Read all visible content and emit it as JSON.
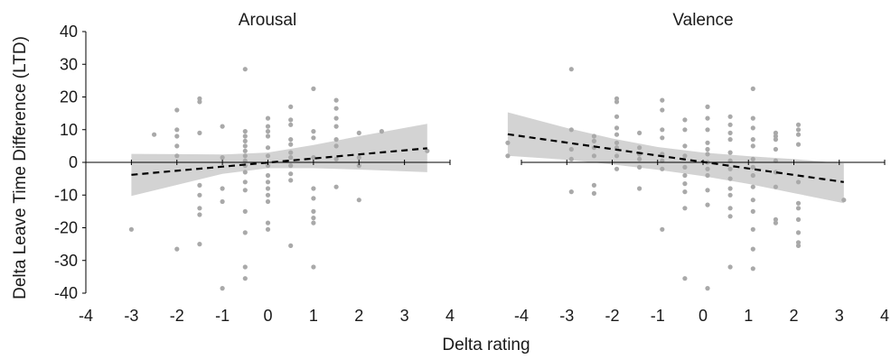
{
  "figure": {
    "ylabel": "Delta Leave Time Difference (LTD)",
    "xlabel": "Delta rating"
  },
  "chart_data": [
    {
      "type": "scatter",
      "title": "Arousal",
      "xlabel": "Delta rating",
      "ylabel": "Delta Leave Time Difference (LTD)",
      "xlim": [
        -4,
        4
      ],
      "ylim": [
        -40,
        40
      ],
      "x_ticks": [
        -4,
        -3,
        -2,
        -1,
        0,
        1,
        2,
        3,
        4
      ],
      "y_ticks": [
        -40,
        -30,
        -20,
        -10,
        0,
        10,
        20,
        30,
        40
      ],
      "grid": false,
      "colors": {
        "points": "#a9a9a9",
        "band": "#d3d3d3",
        "line": "#000000",
        "axis": "#000000"
      },
      "fit_line": {
        "x": [
          -3,
          3.5
        ],
        "y": [
          -3.8,
          4.3
        ]
      },
      "confidence_band": [
        {
          "x": -3.0,
          "lower": -10.3,
          "upper": 2.6
        },
        {
          "x": -2.0,
          "lower": -6.9,
          "upper": 2.5
        },
        {
          "x": -1.0,
          "lower": -3.5,
          "upper": 2.4
        },
        {
          "x": 0.0,
          "lower": -1.8,
          "upper": 3.0
        },
        {
          "x": 1.0,
          "lower": -1.8,
          "upper": 5.3
        },
        {
          "x": 2.0,
          "lower": -2.2,
          "upper": 8.0
        },
        {
          "x": 3.5,
          "lower": -3.0,
          "upper": 11.8
        }
      ],
      "points": [
        {
          "x": -3,
          "y": -20.5
        },
        {
          "x": -2.5,
          "y": 8.5
        },
        {
          "x": -2,
          "y": 16
        },
        {
          "x": -2,
          "y": 10
        },
        {
          "x": -2,
          "y": 8
        },
        {
          "x": -2,
          "y": 5
        },
        {
          "x": -2,
          "y": 2
        },
        {
          "x": -2,
          "y": -26.5
        },
        {
          "x": -1.5,
          "y": 19.5
        },
        {
          "x": -1.5,
          "y": 18.5
        },
        {
          "x": -1.5,
          "y": 9
        },
        {
          "x": -1.5,
          "y": -7
        },
        {
          "x": -1.5,
          "y": -10
        },
        {
          "x": -1.5,
          "y": -14
        },
        {
          "x": -1.5,
          "y": -16
        },
        {
          "x": -1.5,
          "y": -25
        },
        {
          "x": -1,
          "y": 11
        },
        {
          "x": -1,
          "y": 1.5
        },
        {
          "x": -1,
          "y": -8
        },
        {
          "x": -1,
          "y": -12
        },
        {
          "x": -1,
          "y": -38.5
        },
        {
          "x": -0.5,
          "y": 28.5
        },
        {
          "x": -0.5,
          "y": 9.5
        },
        {
          "x": -0.5,
          "y": 8
        },
        {
          "x": -0.5,
          "y": 6.5
        },
        {
          "x": -0.5,
          "y": 5
        },
        {
          "x": -0.5,
          "y": 3.5
        },
        {
          "x": -0.5,
          "y": 2
        },
        {
          "x": -0.5,
          "y": 0.5
        },
        {
          "x": -0.5,
          "y": -1
        },
        {
          "x": -0.5,
          "y": -3
        },
        {
          "x": -0.5,
          "y": -6
        },
        {
          "x": -0.5,
          "y": -8.5
        },
        {
          "x": -0.5,
          "y": -15
        },
        {
          "x": -0.5,
          "y": -21.5
        },
        {
          "x": -0.5,
          "y": -32
        },
        {
          "x": -0.5,
          "y": -35.5
        },
        {
          "x": 0,
          "y": 13.5
        },
        {
          "x": 0,
          "y": 11
        },
        {
          "x": 0,
          "y": 9.5
        },
        {
          "x": 0,
          "y": 8
        },
        {
          "x": 0,
          "y": 4.5
        },
        {
          "x": 0,
          "y": 2
        },
        {
          "x": 0,
          "y": -1
        },
        {
          "x": 0,
          "y": -4
        },
        {
          "x": 0,
          "y": -6
        },
        {
          "x": 0,
          "y": -8
        },
        {
          "x": 0,
          "y": -10
        },
        {
          "x": 0,
          "y": -12
        },
        {
          "x": 0,
          "y": -18.5
        },
        {
          "x": 0,
          "y": -20.5
        },
        {
          "x": 0.5,
          "y": 17
        },
        {
          "x": 0.5,
          "y": 13
        },
        {
          "x": 0.5,
          "y": 11.5
        },
        {
          "x": 0.5,
          "y": 7
        },
        {
          "x": 0.5,
          "y": 5.5
        },
        {
          "x": 0.5,
          "y": 3
        },
        {
          "x": 0.5,
          "y": 1.5
        },
        {
          "x": 0.5,
          "y": -1
        },
        {
          "x": 0.5,
          "y": -3.5
        },
        {
          "x": 0.5,
          "y": -5.5
        },
        {
          "x": 0.5,
          "y": -25.5
        },
        {
          "x": 1,
          "y": 22.5
        },
        {
          "x": 1,
          "y": 9.5
        },
        {
          "x": 1,
          "y": 7.5
        },
        {
          "x": 1,
          "y": 1.5
        },
        {
          "x": 1,
          "y": -8
        },
        {
          "x": 1,
          "y": -11
        },
        {
          "x": 1,
          "y": -15
        },
        {
          "x": 1,
          "y": -17
        },
        {
          "x": 1,
          "y": -18.5
        },
        {
          "x": 1,
          "y": -32
        },
        {
          "x": 1.5,
          "y": 19
        },
        {
          "x": 1.5,
          "y": 16.5
        },
        {
          "x": 1.5,
          "y": 13.5
        },
        {
          "x": 1.5,
          "y": 11
        },
        {
          "x": 1.5,
          "y": 7
        },
        {
          "x": 1.5,
          "y": 5
        },
        {
          "x": 1.5,
          "y": 1
        },
        {
          "x": 1.5,
          "y": -7.5
        },
        {
          "x": 2,
          "y": 9
        },
        {
          "x": 2,
          "y": 1.5
        },
        {
          "x": 2,
          "y": -1
        },
        {
          "x": 2,
          "y": -11.5
        },
        {
          "x": 2.5,
          "y": 9.5
        },
        {
          "x": 3.5,
          "y": 3.5
        }
      ]
    },
    {
      "type": "scatter",
      "title": "Valence",
      "xlabel": "Delta rating",
      "xlim": [
        -4,
        4
      ],
      "ylim": [
        -40,
        40
      ],
      "x_ticks": [
        -4,
        -3,
        -2,
        -1,
        0,
        1,
        2,
        3,
        4
      ],
      "grid": false,
      "colors": {
        "points": "#a9a9a9",
        "band": "#d3d3d3",
        "line": "#000000",
        "axis": "#000000"
      },
      "fit_line": {
        "x": [
          -4.3,
          3.1
        ],
        "y": [
          8.6,
          -6.0
        ]
      },
      "confidence_band": [
        {
          "x": -4.3,
          "lower": 2.0,
          "upper": 15.3
        },
        {
          "x": -3.0,
          "lower": 0.8,
          "upper": 10.5
        },
        {
          "x": -2.0,
          "lower": -0.6,
          "upper": 7.3
        },
        {
          "x": -1.0,
          "lower": -2.3,
          "upper": 4.7
        },
        {
          "x": 0.0,
          "lower": -4.2,
          "upper": 3.0
        },
        {
          "x": 1.0,
          "lower": -6.6,
          "upper": 1.9
        },
        {
          "x": 2.0,
          "lower": -9.4,
          "upper": 1.0
        },
        {
          "x": 3.1,
          "lower": -12.5,
          "upper": -0.3
        }
      ],
      "points": [
        {
          "x": -4.3,
          "y": 6
        },
        {
          "x": -4.3,
          "y": 2
        },
        {
          "x": -2.9,
          "y": 28.5
        },
        {
          "x": -2.9,
          "y": 10
        },
        {
          "x": -2.9,
          "y": 4
        },
        {
          "x": -2.9,
          "y": 1
        },
        {
          "x": -2.9,
          "y": -9
        },
        {
          "x": -2.4,
          "y": 8
        },
        {
          "x": -2.4,
          "y": 6.5
        },
        {
          "x": -2.4,
          "y": 4.5
        },
        {
          "x": -2.4,
          "y": 2
        },
        {
          "x": -2.4,
          "y": -7
        },
        {
          "x": -2.4,
          "y": -9.5
        },
        {
          "x": -1.9,
          "y": 19.5
        },
        {
          "x": -1.9,
          "y": 18.5
        },
        {
          "x": -1.9,
          "y": 14
        },
        {
          "x": -1.9,
          "y": 10.5
        },
        {
          "x": -1.9,
          "y": 8.5
        },
        {
          "x": -1.9,
          "y": 6
        },
        {
          "x": -1.9,
          "y": 4.5
        },
        {
          "x": -1.9,
          "y": 2
        },
        {
          "x": -1.9,
          "y": -2
        },
        {
          "x": -1.4,
          "y": 9
        },
        {
          "x": -1.4,
          "y": 4.5
        },
        {
          "x": -1.4,
          "y": 2.5
        },
        {
          "x": -1.4,
          "y": 1
        },
        {
          "x": -1.4,
          "y": -1.5
        },
        {
          "x": -1.4,
          "y": -8
        },
        {
          "x": -0.9,
          "y": 19
        },
        {
          "x": -0.9,
          "y": 16
        },
        {
          "x": -0.9,
          "y": 10
        },
        {
          "x": -0.9,
          "y": 7.5
        },
        {
          "x": -0.9,
          "y": 2.5
        },
        {
          "x": -0.9,
          "y": 0.5
        },
        {
          "x": -0.9,
          "y": -2
        },
        {
          "x": -0.9,
          "y": -20.5
        },
        {
          "x": -0.4,
          "y": 13
        },
        {
          "x": -0.4,
          "y": 10
        },
        {
          "x": -0.4,
          "y": 5
        },
        {
          "x": -0.4,
          "y": 2
        },
        {
          "x": -0.4,
          "y": -1.5
        },
        {
          "x": -0.4,
          "y": -4
        },
        {
          "x": -0.4,
          "y": -6.5
        },
        {
          "x": -0.4,
          "y": -9
        },
        {
          "x": -0.4,
          "y": -14
        },
        {
          "x": -0.4,
          "y": -35.5
        },
        {
          "x": 0.1,
          "y": 17
        },
        {
          "x": 0.1,
          "y": 13.5
        },
        {
          "x": 0.1,
          "y": 10
        },
        {
          "x": 0.1,
          "y": 6
        },
        {
          "x": 0.1,
          "y": 4
        },
        {
          "x": 0.1,
          "y": 2.5
        },
        {
          "x": 0.1,
          "y": 0
        },
        {
          "x": 0.1,
          "y": -2
        },
        {
          "x": 0.1,
          "y": -4
        },
        {
          "x": 0.1,
          "y": -8.5
        },
        {
          "x": 0.1,
          "y": -13
        },
        {
          "x": 0.1,
          "y": -38.5
        },
        {
          "x": 0.6,
          "y": 14
        },
        {
          "x": 0.6,
          "y": 11.5
        },
        {
          "x": 0.6,
          "y": 9
        },
        {
          "x": 0.6,
          "y": 7
        },
        {
          "x": 0.6,
          "y": 3
        },
        {
          "x": 0.6,
          "y": 0.5
        },
        {
          "x": 0.6,
          "y": -2
        },
        {
          "x": 0.6,
          "y": -5
        },
        {
          "x": 0.6,
          "y": -8
        },
        {
          "x": 0.6,
          "y": -10
        },
        {
          "x": 0.6,
          "y": -14
        },
        {
          "x": 0.6,
          "y": -16.5
        },
        {
          "x": 0.6,
          "y": -32
        },
        {
          "x": 1.1,
          "y": 22.5
        },
        {
          "x": 1.1,
          "y": 13.5
        },
        {
          "x": 1.1,
          "y": 10.5
        },
        {
          "x": 1.1,
          "y": 7
        },
        {
          "x": 1.1,
          "y": 5
        },
        {
          "x": 1.1,
          "y": 1
        },
        {
          "x": 1.1,
          "y": -1.5
        },
        {
          "x": 1.1,
          "y": -4
        },
        {
          "x": 1.1,
          "y": -7.5
        },
        {
          "x": 1.1,
          "y": -11.5
        },
        {
          "x": 1.1,
          "y": -15
        },
        {
          "x": 1.1,
          "y": -20.5
        },
        {
          "x": 1.1,
          "y": -26.5
        },
        {
          "x": 1.1,
          "y": -32.5
        },
        {
          "x": 1.6,
          "y": 9
        },
        {
          "x": 1.6,
          "y": 8
        },
        {
          "x": 1.6,
          "y": 7
        },
        {
          "x": 1.6,
          "y": 4
        },
        {
          "x": 1.6,
          "y": 0.5
        },
        {
          "x": 1.6,
          "y": -3
        },
        {
          "x": 1.6,
          "y": -7.5
        },
        {
          "x": 1.6,
          "y": -17.5
        },
        {
          "x": 1.6,
          "y": -18.5
        },
        {
          "x": 2.1,
          "y": 11.5
        },
        {
          "x": 2.1,
          "y": 10
        },
        {
          "x": 2.1,
          "y": 8.5
        },
        {
          "x": 2.1,
          "y": 5.5
        },
        {
          "x": 2.1,
          "y": -6
        },
        {
          "x": 2.1,
          "y": -12.5
        },
        {
          "x": 2.1,
          "y": -14
        },
        {
          "x": 2.1,
          "y": -17.5
        },
        {
          "x": 2.1,
          "y": -21.5
        },
        {
          "x": 2.1,
          "y": -24.5
        },
        {
          "x": 2.1,
          "y": -25.5
        },
        {
          "x": 3.1,
          "y": -11.5
        }
      ]
    }
  ]
}
